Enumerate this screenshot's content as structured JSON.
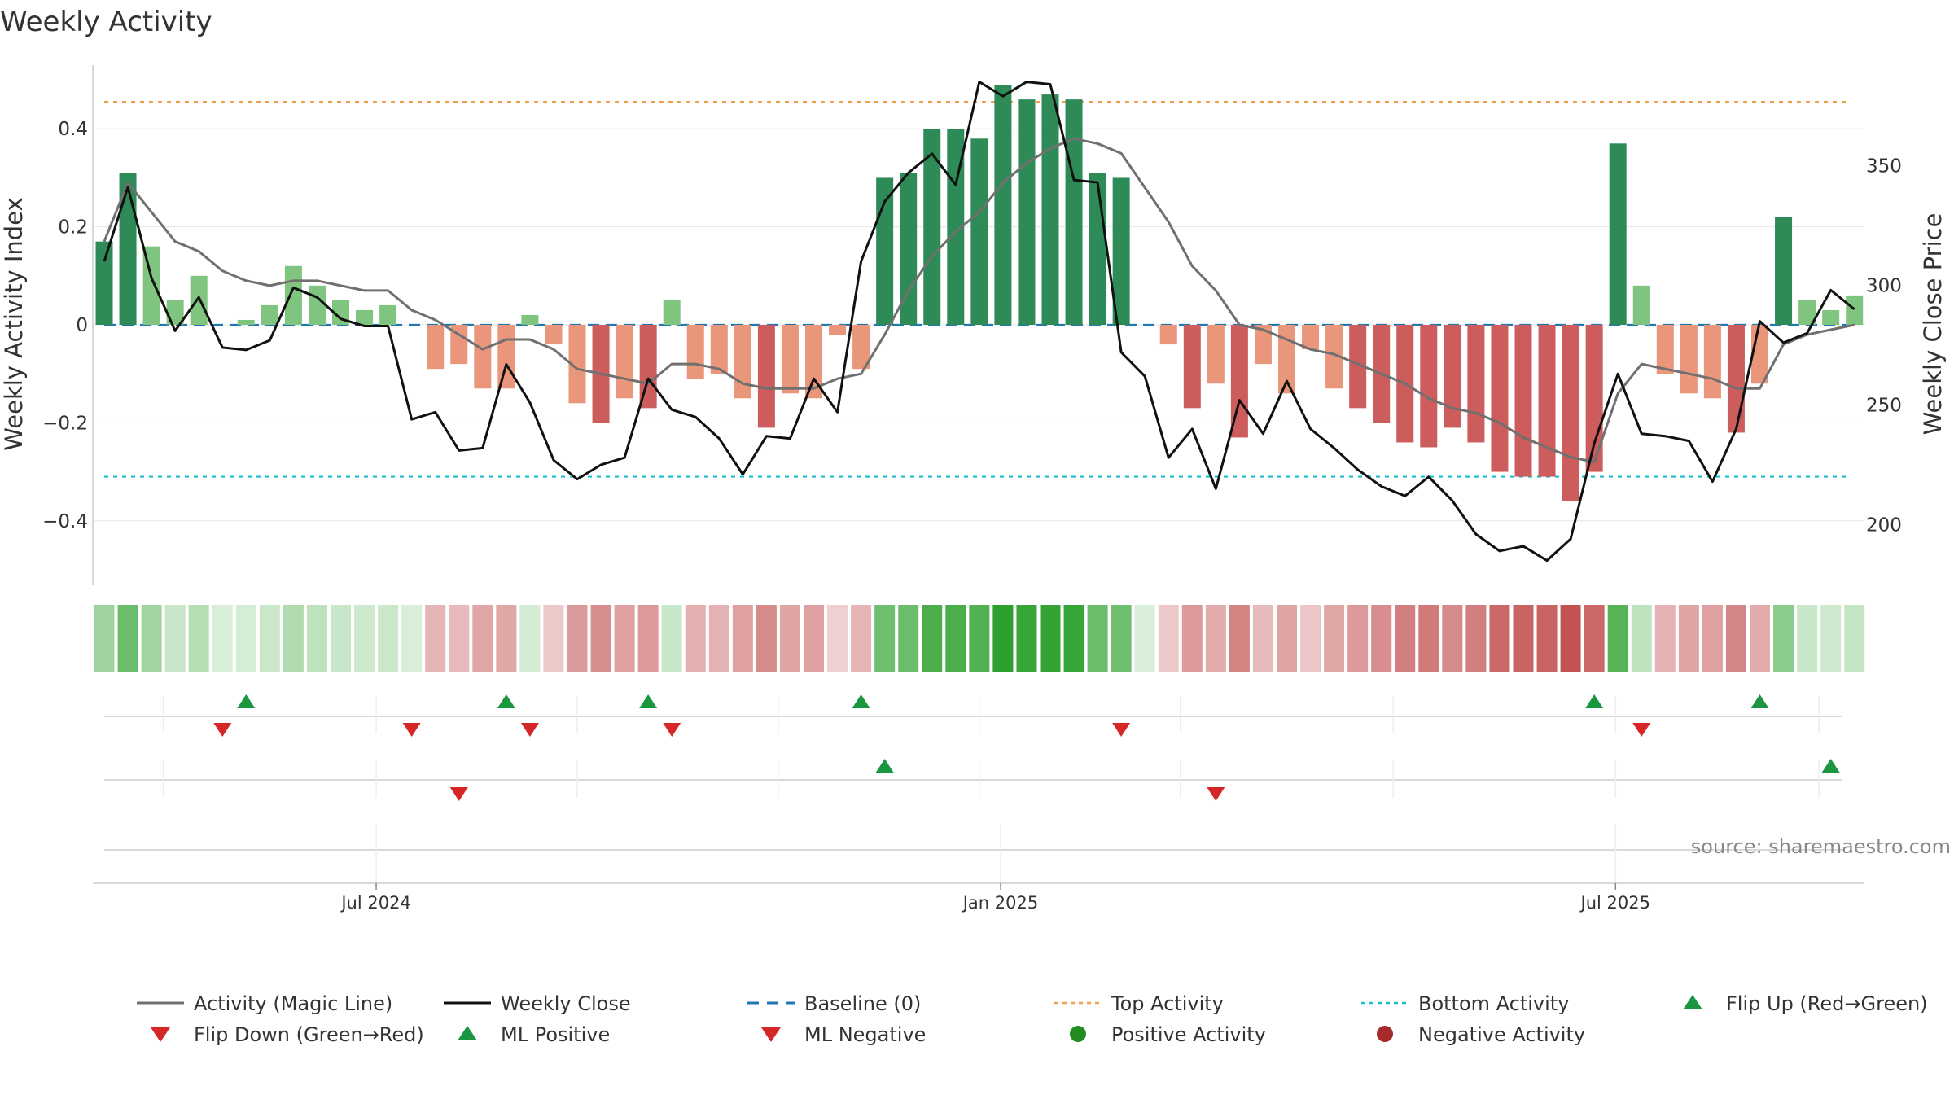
{
  "chart_data": {
    "type": "bar",
    "title": "Weekly Activity",
    "ylabel": "Weekly Activity Index",
    "y2label": "Weekly Close Price",
    "ylim": [
      -0.53,
      0.53
    ],
    "y2lim": [
      175,
      392
    ],
    "yticks": [
      {
        "value": 0.4,
        "label": "0.4"
      },
      {
        "value": 0.2,
        "label": "0.2"
      },
      {
        "value": 0,
        "label": "0"
      },
      {
        "value": -0.2,
        "label": "−0.2"
      },
      {
        "value": -0.4,
        "label": "−0.4"
      }
    ],
    "y2ticks": [
      {
        "value": 350,
        "label": "350"
      },
      {
        "value": 300,
        "label": "300"
      },
      {
        "value": 250,
        "label": "250"
      },
      {
        "value": 200,
        "label": "200"
      }
    ],
    "xticks": [
      {
        "week": 11.5,
        "label": "Jul 2024"
      },
      {
        "week": 37.9,
        "label": "Jan 2025"
      },
      {
        "week": 63.9,
        "label": "Jul 2025"
      }
    ],
    "weeks": 75,
    "activity": [
      0.17,
      0.31,
      0.16,
      0.05,
      0.1,
      0.0,
      0.01,
      0.04,
      0.12,
      0.08,
      0.05,
      0.03,
      0.04,
      0.0,
      -0.09,
      -0.08,
      -0.13,
      -0.13,
      0.02,
      -0.04,
      -0.16,
      -0.2,
      -0.15,
      -0.17,
      0.05,
      -0.11,
      -0.1,
      -0.15,
      -0.21,
      -0.14,
      -0.15,
      -0.02,
      -0.09,
      0.3,
      0.31,
      0.4,
      0.4,
      0.38,
      0.49,
      0.46,
      0.47,
      0.46,
      0.31,
      0.3,
      0.0,
      -0.04,
      -0.17,
      -0.12,
      -0.23,
      -0.08,
      -0.14,
      -0.05,
      -0.13,
      -0.17,
      -0.2,
      -0.24,
      -0.25,
      -0.21,
      -0.24,
      -0.3,
      -0.31,
      -0.31,
      -0.36,
      -0.3,
      0.37,
      0.08,
      -0.1,
      -0.14,
      -0.15,
      -0.22,
      -0.12,
      0.22,
      0.05,
      0.03,
      0.06
    ],
    "magic_line": [
      0.17,
      0.29,
      0.23,
      0.17,
      0.15,
      0.11,
      0.09,
      0.08,
      0.09,
      0.09,
      0.08,
      0.07,
      0.07,
      0.03,
      0.01,
      -0.02,
      -0.05,
      -0.03,
      -0.03,
      -0.05,
      -0.09,
      -0.1,
      -0.11,
      -0.12,
      -0.08,
      -0.08,
      -0.09,
      -0.12,
      -0.13,
      -0.13,
      -0.13,
      -0.11,
      -0.1,
      -0.02,
      0.07,
      0.14,
      0.19,
      0.23,
      0.29,
      0.33,
      0.36,
      0.38,
      0.37,
      0.35,
      0.28,
      0.21,
      0.12,
      0.07,
      0.0,
      -0.01,
      -0.03,
      -0.05,
      -0.06,
      -0.08,
      -0.1,
      -0.12,
      -0.15,
      -0.17,
      -0.18,
      -0.2,
      -0.23,
      -0.25,
      -0.27,
      -0.28,
      -0.14,
      -0.08,
      -0.09,
      -0.1,
      -0.11,
      -0.13,
      -0.13,
      -0.04,
      -0.02,
      -0.01,
      0.0
    ],
    "close": [
      310,
      341,
      303,
      281,
      295,
      274,
      273,
      277,
      299,
      295,
      286,
      283,
      283,
      244,
      247,
      231,
      232,
      267,
      251,
      227,
      219,
      225,
      228,
      261,
      248,
      245,
      236,
      221,
      237,
      236,
      261,
      247,
      310,
      335,
      347,
      355,
      342,
      385,
      379,
      385,
      384,
      344,
      343,
      272,
      262,
      228,
      240,
      215,
      252,
      238,
      260,
      240,
      232,
      223,
      216,
      212,
      220,
      210,
      196,
      189,
      191,
      185,
      194,
      234,
      263,
      238,
      237,
      235,
      218,
      240,
      285,
      276,
      280,
      298,
      290
    ],
    "baseline": {
      "value": 0,
      "label": "Baseline (0)"
    },
    "top_activity": {
      "value": 0.455,
      "label": "Top Activity"
    },
    "bottom_activity": {
      "value": -0.31,
      "label": "Bottom Activity"
    },
    "flip_up_weeks": [
      6,
      17,
      23,
      32,
      63,
      70
    ],
    "flip_down_weeks": [
      5,
      13,
      18,
      24,
      43,
      65
    ],
    "ml_positive_weeks": [
      33,
      73
    ],
    "ml_negative_weeks": [
      15,
      47
    ],
    "legend": [
      {
        "key": "magic_line",
        "label": "Activity (Magic Line)"
      },
      {
        "key": "close",
        "label": "Weekly Close"
      },
      {
        "key": "baseline",
        "label": "Baseline (0)"
      },
      {
        "key": "top",
        "label": "Top Activity"
      },
      {
        "key": "bottom",
        "label": "Bottom Activity"
      },
      {
        "key": "flip_up",
        "label": "Flip Up (Red→Green)"
      },
      {
        "key": "flip_down",
        "label": "Flip Down (Green→Red)"
      },
      {
        "key": "ml_positive",
        "label": "ML Positive"
      },
      {
        "key": "ml_negative",
        "label": "ML Negative"
      },
      {
        "key": "positive_activity",
        "label": "Positive Activity"
      },
      {
        "key": "negative_activity",
        "label": "Negative Activity"
      }
    ],
    "source": "source: sharemaestro.com"
  },
  "colors": {
    "pos_strong": "#2e8b57",
    "pos_light": "#7fc47f",
    "neg_strong": "#cd5c5c",
    "neg_light": "#e9967a",
    "magic_line": "#707070",
    "close": "#111111",
    "baseline": "#1f77b4",
    "top": "#f0a04b",
    "bottom": "#17becf",
    "up_marker": "#1a9641",
    "down_marker": "#d62728",
    "positive_dot": "#228b22",
    "negative_dot": "#a52a2a"
  }
}
